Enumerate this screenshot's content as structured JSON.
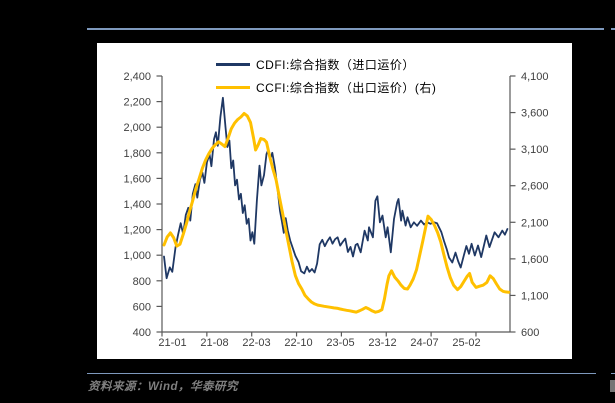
{
  "page": {
    "background_color": "#000000",
    "panel_color": "#ffffff",
    "rule_color": "#7e99bd"
  },
  "legend": {
    "items": [
      {
        "label": "CDFI:综合指数（进口运价）",
        "color": "#1F3864"
      },
      {
        "label": "CCFI:综合指数（出口运价）(右)",
        "color": "#FFC000"
      }
    ]
  },
  "footer": {
    "source_label": "资料来源：Wind，华泰研究"
  },
  "chart_data": {
    "type": "line",
    "title": "",
    "grid": false,
    "legend_position": "top-center",
    "x_domain_months": [
      0,
      54
    ],
    "x_tick_labels": [
      "21-01",
      "21-08",
      "22-03",
      "22-10",
      "23-05",
      "23-12",
      "24-07",
      "25-02"
    ],
    "x_tick_months": [
      0,
      7,
      14,
      21,
      28,
      35,
      42,
      49
    ],
    "left_axis": {
      "min": 400,
      "max": 2400,
      "step": 200,
      "tick_labels": [
        "2,400",
        "2,200",
        "2,000",
        "1,800",
        "1,600",
        "1,400",
        "1,200",
        "1,000",
        "800",
        "600",
        "400"
      ]
    },
    "right_axis": {
      "min": 600,
      "max": 4100,
      "step": 500,
      "tick_labels": [
        "4,100",
        "3,600",
        "3,100",
        "2,600",
        "2,100",
        "1,600",
        "1,100",
        "600"
      ]
    },
    "axis_color": "#595959",
    "label_color": "#404040",
    "series": [
      {
        "name": "CDFI:综合指数（进口运价）",
        "axis": "left",
        "color": "#1F3864",
        "stroke_width": 1.8,
        "points": [
          [
            0,
            990
          ],
          [
            0.4,
            820
          ],
          [
            0.9,
            905
          ],
          [
            1.3,
            870
          ],
          [
            1.8,
            1060
          ],
          [
            2.2,
            1160
          ],
          [
            2.6,
            1250
          ],
          [
            3,
            1165
          ],
          [
            3.4,
            1315
          ],
          [
            3.8,
            1370
          ],
          [
            4.1,
            1270
          ],
          [
            4.5,
            1480
          ],
          [
            4.9,
            1555
          ],
          [
            5.2,
            1450
          ],
          [
            5.6,
            1590
          ],
          [
            6,
            1645
          ],
          [
            6.3,
            1565
          ],
          [
            6.7,
            1725
          ],
          [
            7.1,
            1790
          ],
          [
            7.4,
            1695
          ],
          [
            7.8,
            1905
          ],
          [
            8.1,
            1960
          ],
          [
            8.4,
            1855
          ],
          [
            8.8,
            2080
          ],
          [
            9.2,
            2230
          ],
          [
            9.6,
            2000
          ],
          [
            9.9,
            1845
          ],
          [
            10.2,
            1895
          ],
          [
            10.5,
            1680
          ],
          [
            10.8,
            1740
          ],
          [
            11.1,
            1545
          ],
          [
            11.4,
            1590
          ],
          [
            11.7,
            1435
          ],
          [
            12,
            1480
          ],
          [
            12.3,
            1330
          ],
          [
            12.6,
            1390
          ],
          [
            12.9,
            1245
          ],
          [
            13.2,
            1285
          ],
          [
            13.5,
            1115
          ],
          [
            13.8,
            1180
          ],
          [
            14.1,
            1090
          ],
          [
            14.5,
            1430
          ],
          [
            14.9,
            1700
          ],
          [
            15.2,
            1545
          ],
          [
            15.6,
            1625
          ],
          [
            16,
            1790
          ],
          [
            16.3,
            1825
          ],
          [
            16.6,
            1755
          ],
          [
            16.9,
            1800
          ],
          [
            17.3,
            1690
          ],
          [
            17.7,
            1530
          ],
          [
            18.1,
            1345
          ],
          [
            18.4,
            1265
          ],
          [
            18.7,
            1175
          ],
          [
            19,
            1290
          ],
          [
            19.3,
            1195
          ],
          [
            19.7,
            1115
          ],
          [
            20.1,
            1055
          ],
          [
            20.5,
            995
          ],
          [
            21,
            945
          ],
          [
            21.4,
            875
          ],
          [
            21.9,
            858
          ],
          [
            22.3,
            910
          ],
          [
            22.7,
            870
          ],
          [
            23.1,
            892
          ],
          [
            23.5,
            865
          ],
          [
            23.9,
            935
          ],
          [
            24.3,
            1085
          ],
          [
            24.7,
            1120
          ],
          [
            25.1,
            1070
          ],
          [
            25.5,
            1110
          ],
          [
            25.9,
            1140
          ],
          [
            26.3,
            1090
          ],
          [
            26.7,
            1125
          ],
          [
            27.1,
            1140
          ],
          [
            27.5,
            1075
          ],
          [
            27.9,
            1105
          ],
          [
            28.3,
            1130
          ],
          [
            28.7,
            1025
          ],
          [
            29.1,
            1065
          ],
          [
            29.5,
            990
          ],
          [
            29.9,
            1080
          ],
          [
            30.2,
            1089
          ],
          [
            30.7,
            1023
          ],
          [
            31.3,
            1192
          ],
          [
            31.8,
            1115
          ],
          [
            32,
            1218
          ],
          [
            32.6,
            1140
          ],
          [
            33,
            1426
          ],
          [
            33.3,
            1460
          ],
          [
            33.7,
            1257
          ],
          [
            34.1,
            1309
          ],
          [
            34.6,
            1140
          ],
          [
            34.9,
            1218
          ],
          [
            35.4,
            1023
          ],
          [
            35.9,
            1283
          ],
          [
            36.4,
            1413
          ],
          [
            36.6,
            1439
          ],
          [
            37,
            1270
          ],
          [
            37.2,
            1348
          ],
          [
            37.7,
            1231
          ],
          [
            38,
            1296
          ],
          [
            38.5,
            1218
          ],
          [
            39,
            1257
          ],
          [
            39.5,
            1230
          ],
          [
            40.1,
            1270
          ],
          [
            40.6,
            1240
          ],
          [
            41.1,
            1257
          ],
          [
            41.6,
            1245
          ],
          [
            42.1,
            1257
          ],
          [
            42.6,
            1250
          ],
          [
            43.3,
            1180
          ],
          [
            43.7,
            1111
          ],
          [
            44.1,
            1050
          ],
          [
            44.5,
            981
          ],
          [
            45,
            943
          ],
          [
            45.5,
            1020
          ],
          [
            45.9,
            955
          ],
          [
            46.3,
            904
          ],
          [
            46.8,
            1000
          ],
          [
            47.2,
            1072
          ],
          [
            47.6,
            1011
          ],
          [
            48,
            1089
          ],
          [
            48.5,
            998
          ],
          [
            49,
            1076
          ],
          [
            49.5,
            985
          ],
          [
            50.3,
            1154
          ],
          [
            50.8,
            1063
          ],
          [
            51.6,
            1179
          ],
          [
            52.2,
            1140
          ],
          [
            52.8,
            1192
          ],
          [
            53.2,
            1160
          ],
          [
            53.6,
            1205
          ]
        ]
      },
      {
        "name": "CCFI:综合指数（出口运价）(右)",
        "axis": "right",
        "color": "#FFC000",
        "stroke_width": 3,
        "points": [
          [
            0,
            1790
          ],
          [
            0.5,
            1900
          ],
          [
            1,
            1955
          ],
          [
            1.5,
            1890
          ],
          [
            2,
            1775
          ],
          [
            2.5,
            1800
          ],
          [
            3,
            1935
          ],
          [
            3.5,
            2080
          ],
          [
            4,
            2250
          ],
          [
            4.5,
            2400
          ],
          [
            5,
            2565
          ],
          [
            5.5,
            2700
          ],
          [
            6,
            2840
          ],
          [
            6.5,
            2950
          ],
          [
            7,
            3040
          ],
          [
            7.5,
            3110
          ],
          [
            8,
            3160
          ],
          [
            8.5,
            3200
          ],
          [
            9,
            3170
          ],
          [
            9.5,
            3135
          ],
          [
            10,
            3250
          ],
          [
            10.5,
            3380
          ],
          [
            11,
            3455
          ],
          [
            11.5,
            3505
          ],
          [
            12,
            3540
          ],
          [
            12.5,
            3587
          ],
          [
            13,
            3555
          ],
          [
            13.5,
            3465
          ],
          [
            14,
            3240
          ],
          [
            14.3,
            3088
          ],
          [
            14.7,
            3160
          ],
          [
            15.1,
            3246
          ],
          [
            15.6,
            3230
          ],
          [
            16,
            3195
          ],
          [
            16.5,
            3000
          ],
          [
            17,
            2830
          ],
          [
            17.5,
            2680
          ],
          [
            18,
            2450
          ],
          [
            18.5,
            2230
          ],
          [
            19,
            2000
          ],
          [
            19.5,
            1780
          ],
          [
            20,
            1560
          ],
          [
            20.5,
            1370
          ],
          [
            21,
            1260
          ],
          [
            21.5,
            1188
          ],
          [
            22,
            1100
          ],
          [
            22.5,
            1052
          ],
          [
            23,
            1010
          ],
          [
            23.5,
            984
          ],
          [
            24,
            968
          ],
          [
            24.5,
            960
          ],
          [
            25,
            952
          ],
          [
            25.5,
            945
          ],
          [
            26,
            938
          ],
          [
            26.5,
            930
          ],
          [
            27,
            925
          ],
          [
            27.5,
            915
          ],
          [
            28,
            905
          ],
          [
            28.5,
            897
          ],
          [
            29,
            890
          ],
          [
            29.5,
            880
          ],
          [
            30,
            872
          ],
          [
            30.5,
            890
          ],
          [
            31,
            910
          ],
          [
            31.5,
            935
          ],
          [
            32,
            915
          ],
          [
            32.5,
            888
          ],
          [
            33,
            871
          ],
          [
            33.5,
            882
          ],
          [
            34,
            905
          ],
          [
            34.4,
            1050
          ],
          [
            34.8,
            1250
          ],
          [
            35.1,
            1369
          ],
          [
            35.5,
            1437
          ],
          [
            36,
            1350
          ],
          [
            36.5,
            1300
          ],
          [
            37,
            1240
          ],
          [
            37.5,
            1195
          ],
          [
            38,
            1188
          ],
          [
            38.4,
            1240
          ],
          [
            38.9,
            1324
          ],
          [
            39.4,
            1450
          ],
          [
            39.9,
            1650
          ],
          [
            40.4,
            1850
          ],
          [
            40.9,
            2060
          ],
          [
            41.2,
            2183
          ],
          [
            41.7,
            2138
          ],
          [
            42.2,
            2060
          ],
          [
            42.7,
            1960
          ],
          [
            43.2,
            1830
          ],
          [
            43.7,
            1650
          ],
          [
            44.2,
            1480
          ],
          [
            44.7,
            1340
          ],
          [
            45.2,
            1240
          ],
          [
            45.8,
            1180
          ],
          [
            46.3,
            1220
          ],
          [
            46.8,
            1290
          ],
          [
            47.3,
            1360
          ],
          [
            47.7,
            1400
          ],
          [
            48.1,
            1278
          ],
          [
            48.7,
            1210
          ],
          [
            49.2,
            1225
          ],
          [
            49.8,
            1240
          ],
          [
            50.4,
            1278
          ],
          [
            50.9,
            1369
          ],
          [
            51.4,
            1330
          ],
          [
            51.9,
            1256
          ],
          [
            52.4,
            1188
          ],
          [
            52.9,
            1156
          ],
          [
            53.3,
            1148
          ],
          [
            53.8,
            1143
          ]
        ]
      }
    ]
  }
}
